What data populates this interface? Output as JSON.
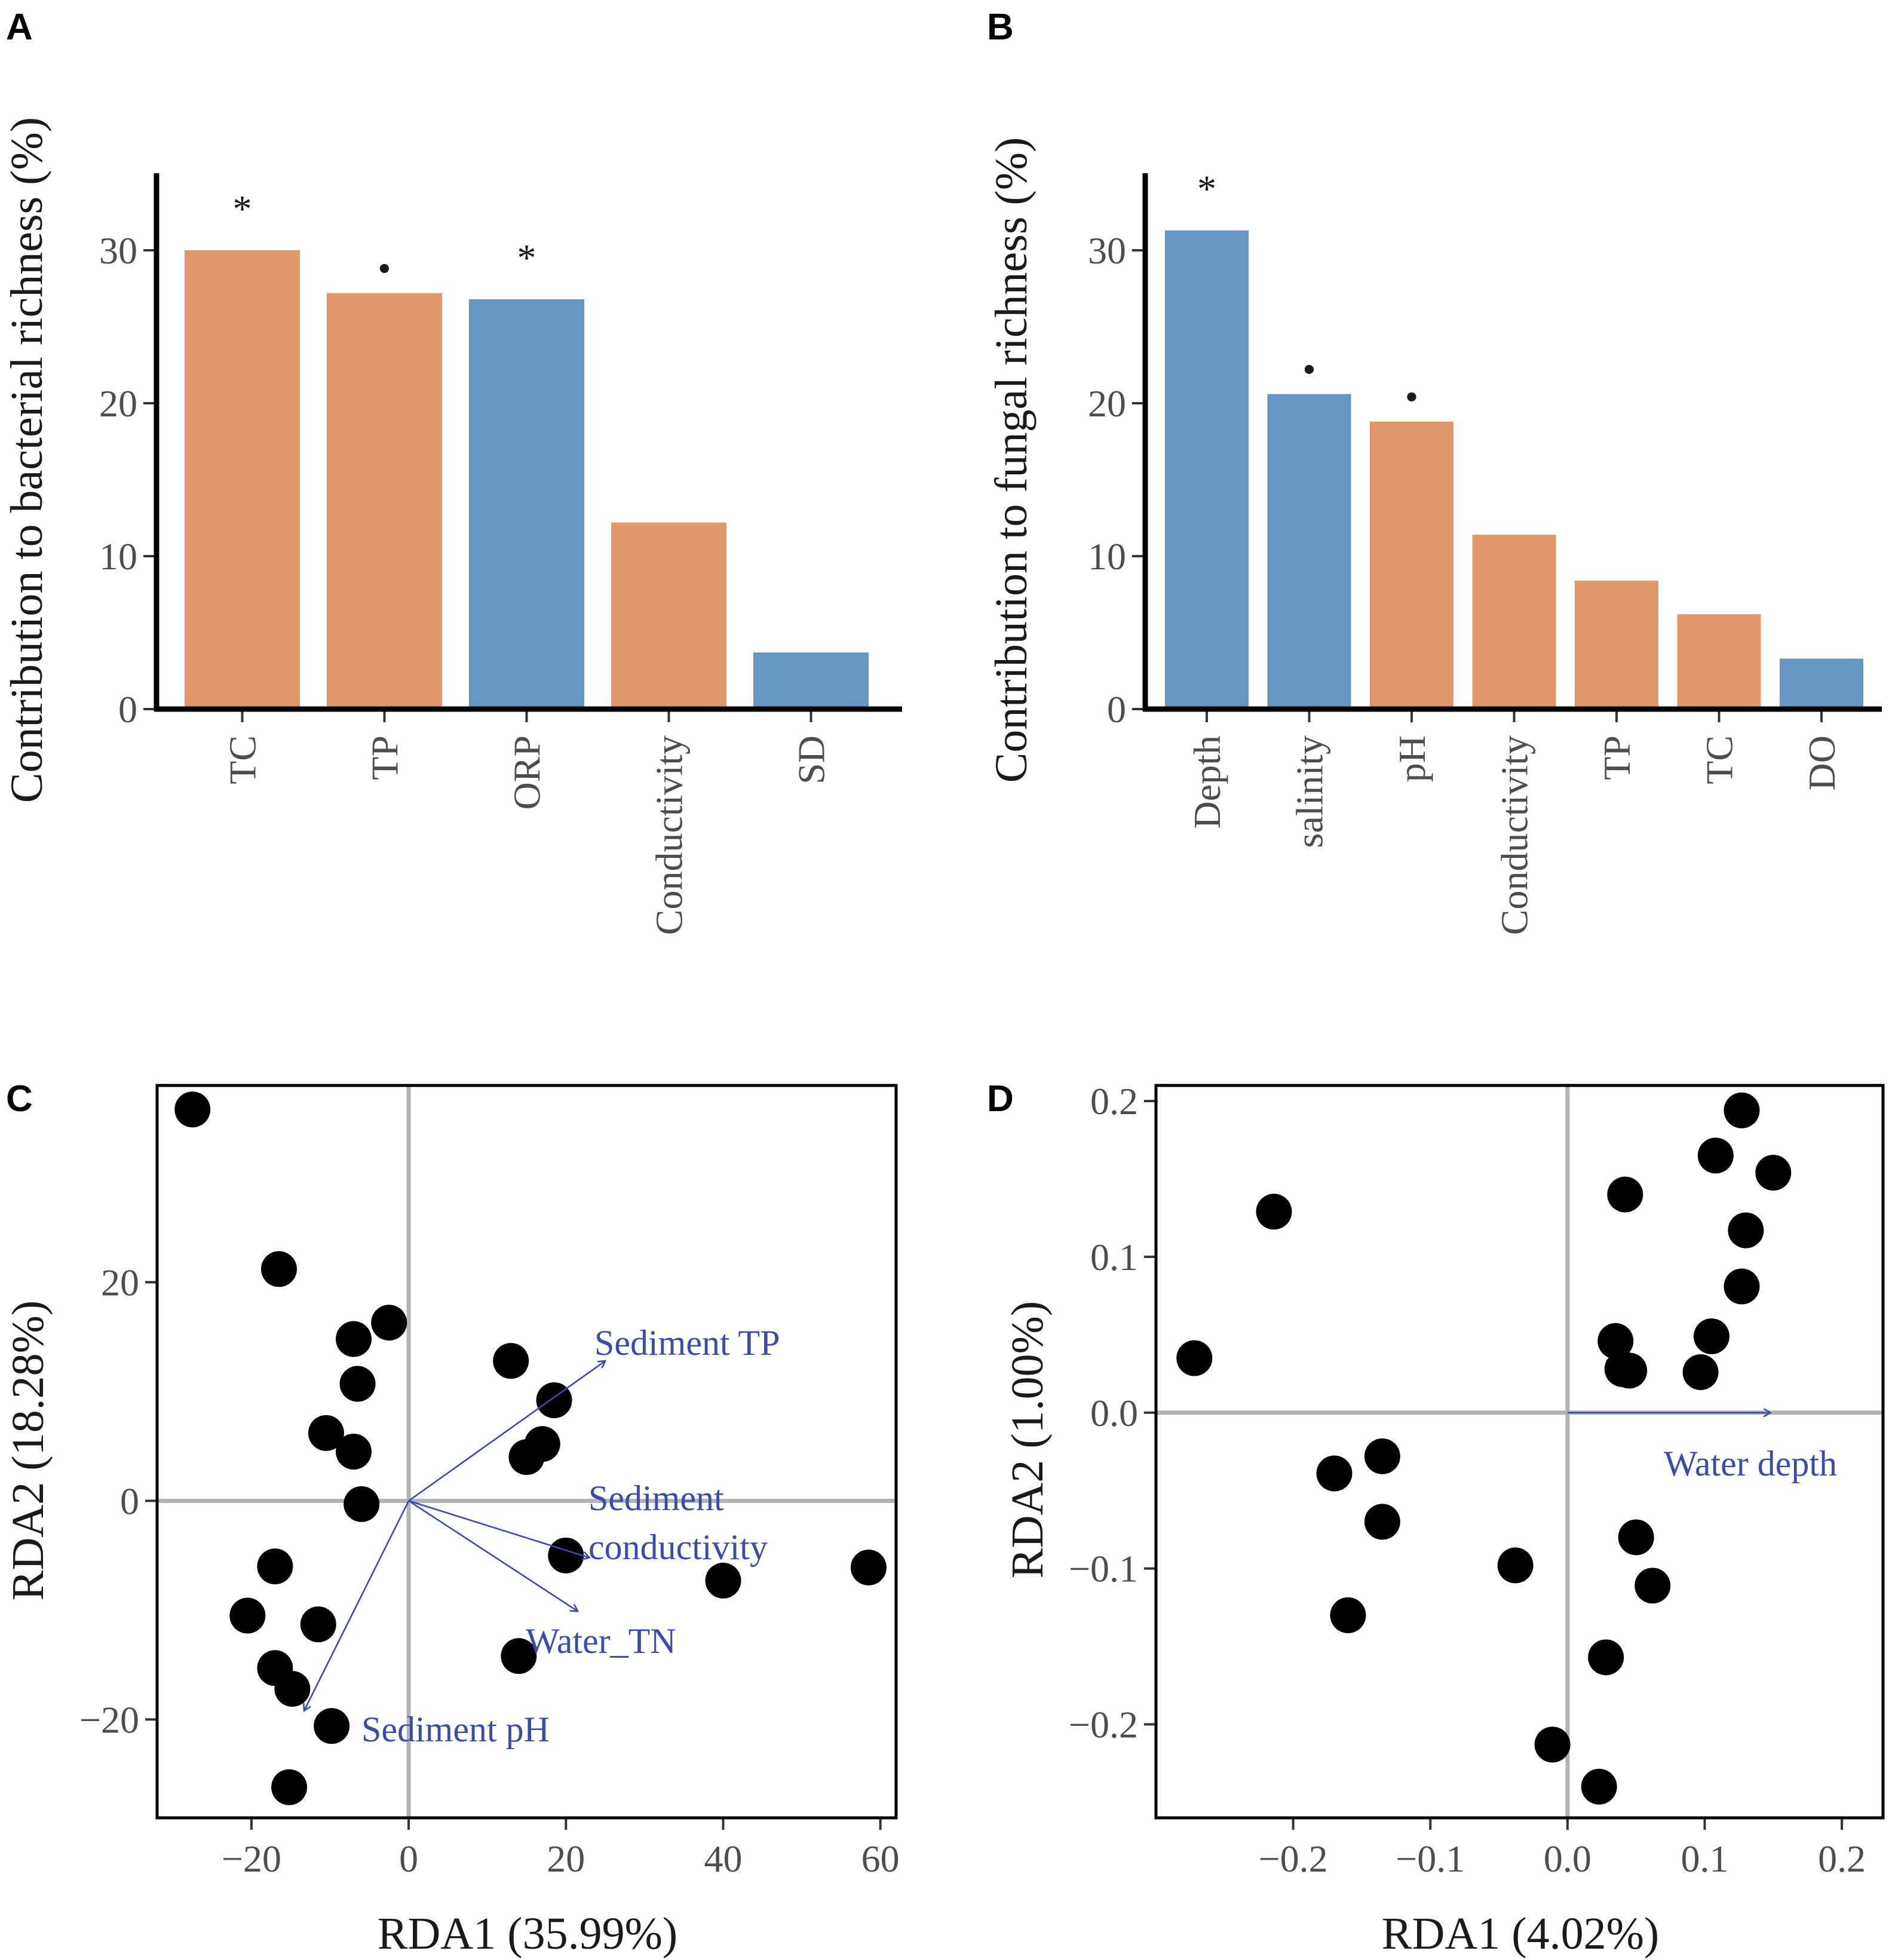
{
  "colors": {
    "orange": "#e0986a",
    "blue": "#6797c1",
    "vector": "#3a4ca8",
    "zero_line": "#b3b3b3"
  },
  "panel_labels": [
    "A",
    "B",
    "C",
    "D"
  ],
  "chart_data": [
    {
      "type": "bar",
      "panel": "A",
      "categories": [
        "TC",
        "TP",
        "ORP",
        "Conductivity",
        "SD"
      ],
      "values": [
        30.0,
        27.2,
        26.8,
        12.2,
        3.7
      ],
      "bar_colors": [
        "orange",
        "orange",
        "blue",
        "orange",
        "blue"
      ],
      "significance": [
        "*",
        "•",
        "*",
        "",
        ""
      ],
      "ylabel": "Contribution to bacterial richness (%)",
      "xlabel": "",
      "yticks": [
        0,
        10,
        20,
        30
      ],
      "ylim": [
        0,
        35
      ]
    },
    {
      "type": "bar",
      "panel": "B",
      "categories": [
        "Depth",
        "salinity",
        "pH",
        "Conductivity",
        "TP",
        "TC",
        "DO"
      ],
      "values": [
        31.3,
        20.6,
        18.8,
        11.4,
        8.4,
        6.2,
        3.3
      ],
      "bar_colors": [
        "blue",
        "blue",
        "orange",
        "orange",
        "orange",
        "orange",
        "blue"
      ],
      "significance": [
        "*",
        "•",
        "•",
        "",
        "",
        "",
        ""
      ],
      "ylabel": "Contribution to fungal richness (%)",
      "xlabel": "",
      "yticks": [
        0,
        10,
        20,
        30
      ],
      "ylim": [
        0,
        35
      ]
    },
    {
      "type": "scatter",
      "panel": "C",
      "xlabel": "RDA1 (35.99%)",
      "ylabel": "RDA2 (18.28%)",
      "xlim": [
        -32,
        62
      ],
      "ylim": [
        -29,
        38
      ],
      "xticks": [
        -20,
        0,
        20,
        40,
        60
      ],
      "yticks": [
        -20,
        0,
        20
      ],
      "tick_labels_x": [
        "−20",
        "0",
        "20",
        "40",
        "60"
      ],
      "tick_labels_y": [
        "−20",
        "0",
        "20"
      ],
      "points": [
        {
          "x": -27.5,
          "y": 35.8
        },
        {
          "x": -16.5,
          "y": 21.2
        },
        {
          "x": -2.5,
          "y": 16.3
        },
        {
          "x": -7,
          "y": 14.8
        },
        {
          "x": -6.5,
          "y": 10.7
        },
        {
          "x": -10.5,
          "y": 6.2
        },
        {
          "x": -7,
          "y": 4.5
        },
        {
          "x": -6,
          "y": -0.3
        },
        {
          "x": 13,
          "y": 12.8
        },
        {
          "x": 18.5,
          "y": 9.2
        },
        {
          "x": 17,
          "y": 5.2
        },
        {
          "x": 15,
          "y": 4.0
        },
        {
          "x": 20,
          "y": -5.0
        },
        {
          "x": 40,
          "y": -7.3
        },
        {
          "x": 58.5,
          "y": -6.1
        },
        {
          "x": -17,
          "y": -6.0
        },
        {
          "x": -20.5,
          "y": -10.5
        },
        {
          "x": -11.5,
          "y": -11.3
        },
        {
          "x": -17,
          "y": -15.3
        },
        {
          "x": -14.8,
          "y": -17.2
        },
        {
          "x": 14,
          "y": -14.2
        },
        {
          "x": -9.8,
          "y": -20.6
        },
        {
          "x": -15.2,
          "y": -26.2
        }
      ],
      "vectors": [
        {
          "label": "Sediment TP",
          "x": 25,
          "y": 12.8
        },
        {
          "label": "Sediment conductivity",
          "x": 23,
          "y": -5.2
        },
        {
          "label": "Water_TN",
          "x": 21.5,
          "y": -10.1
        },
        {
          "label": "Sediment pH",
          "x": -13.3,
          "y": -19.2
        }
      ]
    },
    {
      "type": "scatter",
      "panel": "D",
      "xlabel": "RDA1 (4.02%)",
      "ylabel": "RDA2 (1.00%)",
      "xlim": [
        -0.3,
        0.23
      ],
      "ylim": [
        -0.26,
        0.21
      ],
      "xticks": [
        -0.2,
        -0.1,
        0.0,
        0.1,
        0.2
      ],
      "yticks": [
        -0.2,
        -0.1,
        0.0,
        0.1,
        0.2
      ],
      "tick_labels_x": [
        "−0.2",
        "−0.1",
        "0.0",
        "0.1",
        "0.2"
      ],
      "tick_labels_y": [
        "−0.2",
        "−0.1",
        "0.0",
        "0.1",
        "0.2"
      ],
      "points": [
        {
          "x": -0.272,
          "y": 0.035
        },
        {
          "x": -0.214,
          "y": 0.129
        },
        {
          "x": -0.17,
          "y": -0.039
        },
        {
          "x": -0.135,
          "y": -0.028
        },
        {
          "x": -0.135,
          "y": -0.07
        },
        {
          "x": -0.16,
          "y": -0.13
        },
        {
          "x": -0.038,
          "y": -0.098
        },
        {
          "x": -0.011,
          "y": -0.213
        },
        {
          "x": 0.023,
          "y": -0.24
        },
        {
          "x": 0.028,
          "y": -0.157
        },
        {
          "x": 0.042,
          "y": 0.14
        },
        {
          "x": 0.035,
          "y": 0.046
        },
        {
          "x": 0.04,
          "y": 0.028
        },
        {
          "x": 0.045,
          "y": 0.027
        },
        {
          "x": 0.05,
          "y": -0.08
        },
        {
          "x": 0.062,
          "y": -0.111
        },
        {
          "x": 0.097,
          "y": 0.026
        },
        {
          "x": 0.105,
          "y": 0.049
        },
        {
          "x": 0.108,
          "y": 0.165
        },
        {
          "x": 0.127,
          "y": 0.194
        },
        {
          "x": 0.15,
          "y": 0.154
        },
        {
          "x": 0.13,
          "y": 0.117
        },
        {
          "x": 0.127,
          "y": 0.081
        }
      ],
      "vectors": [
        {
          "label": "Water depth",
          "x": 0.148,
          "y": 0.0
        }
      ]
    }
  ]
}
